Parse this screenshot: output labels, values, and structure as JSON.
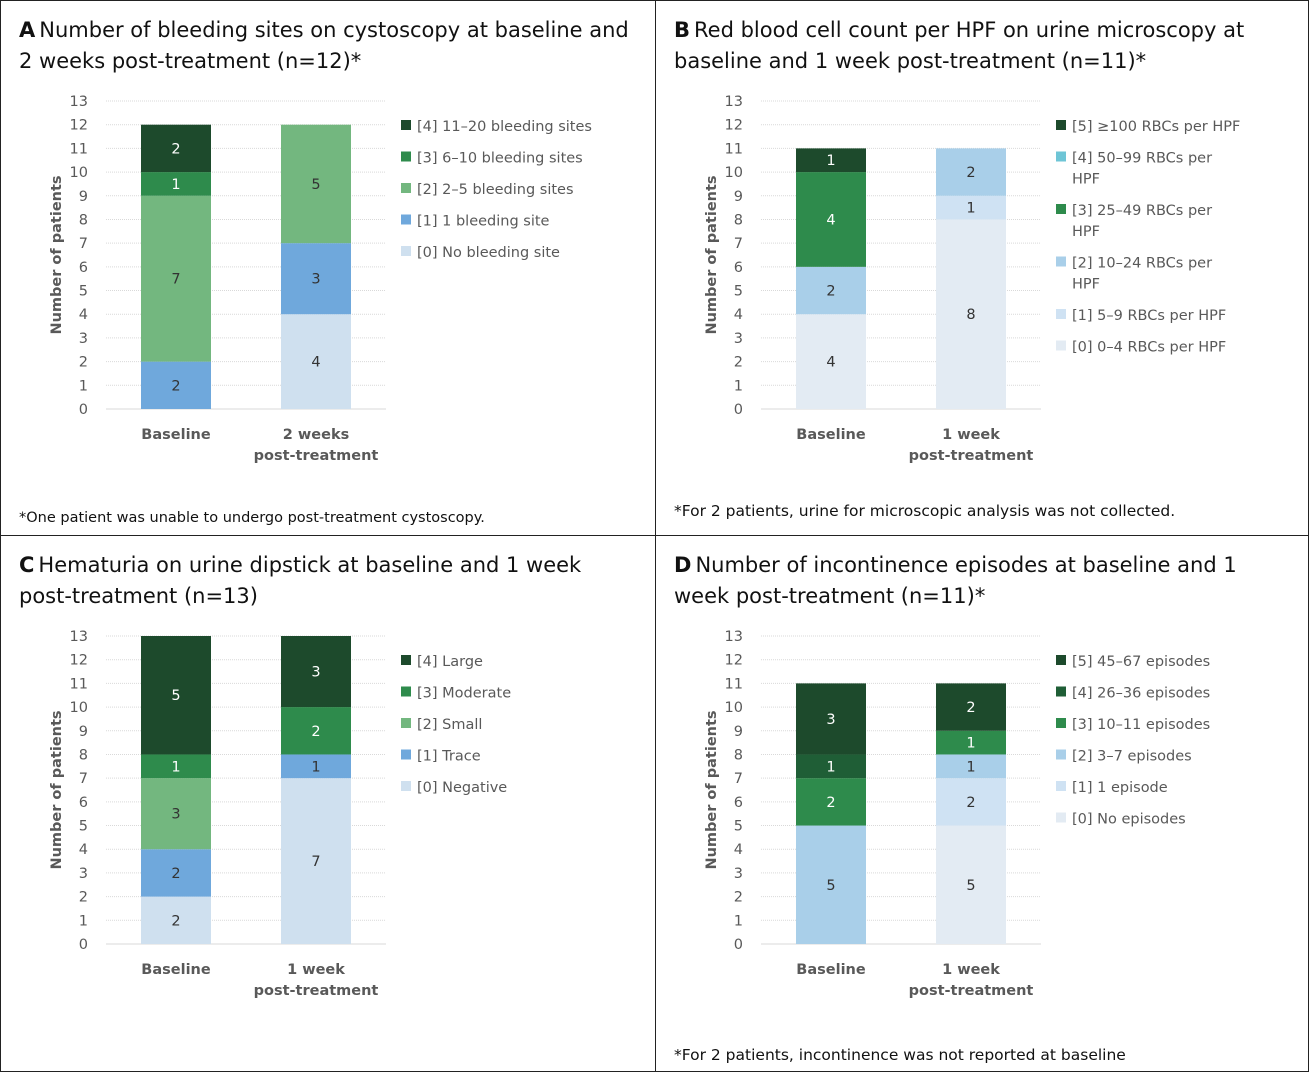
{
  "panels": [
    {
      "letter": "A",
      "title": "Number of bleeding sites on cystoscopy at baseline and 2 weeks post-treatment (n=12)*",
      "note": "*One patient was unable to undergo post-treatment cystoscopy."
    },
    {
      "letter": "B",
      "title": "Red blood cell count per HPF on urine microscopy at baseline and 1 week post-treatment (n=11)*",
      "note": "*For 2 patients, urine for microscopic analysis was not collected."
    },
    {
      "letter": "C",
      "title": "Hematuria on urine dipstick at baseline and 1 week post-treatment (n=13)",
      "note": ""
    },
    {
      "letter": "D",
      "title": "Number of incontinence episodes at baseline and 1 week post-treatment (n=11)*",
      "note": "*For 2 patients, incontinence was not reported at baseline"
    }
  ],
  "chart_data": [
    {
      "type": "bar",
      "stacked": true,
      "ylabel": "Number of patients",
      "ylim": [
        0,
        13
      ],
      "yticks": [
        0,
        1,
        2,
        3,
        4,
        5,
        6,
        7,
        8,
        9,
        10,
        11,
        12,
        13
      ],
      "categories": [
        "Baseline",
        "2 weeks post-treatment"
      ],
      "category_lines": [
        [
          "Baseline"
        ],
        [
          "2 weeks",
          "post-treatment"
        ]
      ],
      "series": [
        {
          "name": "[0] No bleeding site",
          "values": [
            0,
            4
          ],
          "color": "#cfe0ef",
          "label_color": "#333333"
        },
        {
          "name": "[1] 1 bleeding site",
          "values": [
            2,
            3
          ],
          "color": "#6fa8dc",
          "label_color": "#333333"
        },
        {
          "name": "[2] 2–5 bleeding sites",
          "values": [
            7,
            5
          ],
          "color": "#73b77f",
          "label_color": "#333333"
        },
        {
          "name": "[3] 6–10 bleeding sites",
          "values": [
            1,
            0
          ],
          "color": "#2e8b4c",
          "label_color": "#ffffff"
        },
        {
          "name": "[4] 11–20 bleeding sites",
          "values": [
            2,
            0
          ],
          "color": "#1d4a2c",
          "label_color": "#ffffff"
        }
      ],
      "legend_order": [
        4,
        3,
        2,
        1,
        0
      ],
      "legend_multiline": {},
      "legend": "right",
      "grid": true
    },
    {
      "type": "bar",
      "stacked": true,
      "ylabel": "Number of patients",
      "ylim": [
        0,
        13
      ],
      "yticks": [
        0,
        1,
        2,
        3,
        4,
        5,
        6,
        7,
        8,
        9,
        10,
        11,
        12,
        13
      ],
      "categories": [
        "Baseline",
        "1 week post-treatment"
      ],
      "category_lines": [
        [
          "Baseline"
        ],
        [
          "1 week",
          "post-treatment"
        ]
      ],
      "series": [
        {
          "name": "[0] 0–4 RBCs per HPF",
          "values": [
            4,
            8
          ],
          "color": "#e3ebf3",
          "label_color": "#333333"
        },
        {
          "name": "[1] 5–9 RBCs per HPF",
          "values": [
            0,
            1
          ],
          "color": "#cfe2f3",
          "label_color": "#333333"
        },
        {
          "name": "[2] 10–24 RBCs per HPF",
          "values": [
            2,
            2
          ],
          "color": "#a9cfe9",
          "label_color": "#333333"
        },
        {
          "name": "[3] 25–49 RBCs per HPF",
          "values": [
            4,
            0
          ],
          "color": "#2e8b4c",
          "label_color": "#ffffff"
        },
        {
          "name": "[4] 50–99 RBCs per HPF",
          "values": [
            0,
            0
          ],
          "color": "#6ec5d6",
          "label_color": "#333333"
        },
        {
          "name": "[5] ≥100 RBCs per HPF",
          "values": [
            1,
            0
          ],
          "color": "#1d4a2c",
          "label_color": "#ffffff"
        }
      ],
      "legend_order": [
        5,
        4,
        3,
        2,
        1,
        0
      ],
      "legend_multiline": {
        "4": [
          "[4] 50–99 RBCs per",
          "HPF"
        ],
        "3": [
          "[3] 25–49 RBCs per",
          "HPF"
        ],
        "2": [
          "[2] 10–24 RBCs per",
          "HPF"
        ]
      },
      "legend": "right",
      "grid": true
    },
    {
      "type": "bar",
      "stacked": true,
      "ylabel": "Number of patients",
      "ylim": [
        0,
        13
      ],
      "yticks": [
        0,
        1,
        2,
        3,
        4,
        5,
        6,
        7,
        8,
        9,
        10,
        11,
        12,
        13
      ],
      "categories": [
        "Baseline",
        "1 week post-treatment"
      ],
      "category_lines": [
        [
          "Baseline"
        ],
        [
          "1 week",
          "post-treatment"
        ]
      ],
      "series": [
        {
          "name": "[0] Negative",
          "values": [
            2,
            7
          ],
          "color": "#cfe0ef",
          "label_color": "#333333"
        },
        {
          "name": "[1] Trace",
          "values": [
            2,
            1
          ],
          "color": "#6fa8dc",
          "label_color": "#333333"
        },
        {
          "name": "[2] Small",
          "values": [
            3,
            0
          ],
          "color": "#73b77f",
          "label_color": "#333333"
        },
        {
          "name": "[3] Moderate",
          "values": [
            1,
            2
          ],
          "color": "#2e8b4c",
          "label_color": "#ffffff"
        },
        {
          "name": "[4] Large",
          "values": [
            5,
            3
          ],
          "color": "#1d4a2c",
          "label_color": "#ffffff"
        }
      ],
      "legend_order": [
        4,
        3,
        2,
        1,
        0
      ],
      "legend_multiline": {},
      "legend": "right",
      "grid": true
    },
    {
      "type": "bar",
      "stacked": true,
      "ylabel": "Number of patients",
      "ylim": [
        0,
        13
      ],
      "yticks": [
        0,
        1,
        2,
        3,
        4,
        5,
        6,
        7,
        8,
        9,
        10,
        11,
        12,
        13
      ],
      "categories": [
        "Baseline",
        "1 week post-treatment"
      ],
      "category_lines": [
        [
          "Baseline"
        ],
        [
          "1 week",
          "post-treatment"
        ]
      ],
      "series": [
        {
          "name": "[0] No episodes",
          "values": [
            0,
            5
          ],
          "color": "#e3ebf3",
          "label_color": "#333333"
        },
        {
          "name": "[1] 1 episode",
          "values": [
            0,
            2
          ],
          "color": "#cfe2f3",
          "label_color": "#333333"
        },
        {
          "name": "[2] 3–7 episodes",
          "values": [
            5,
            1
          ],
          "color": "#a9cfe9",
          "label_color": "#333333"
        },
        {
          "name": "[3] 10–11 episodes",
          "values": [
            2,
            1
          ],
          "color": "#2e8b4c",
          "label_color": "#ffffff"
        },
        {
          "name": "[4] 26–36 episodes",
          "values": [
            1,
            0
          ],
          "color": "#1f5e36",
          "label_color": "#ffffff"
        },
        {
          "name": "[5] 45–67 episodes",
          "values": [
            3,
            2
          ],
          "color": "#1d4a2c",
          "label_color": "#ffffff"
        }
      ],
      "legend_order": [
        5,
        4,
        3,
        2,
        1,
        0
      ],
      "legend_multiline": {},
      "legend": "right",
      "grid": true
    }
  ]
}
